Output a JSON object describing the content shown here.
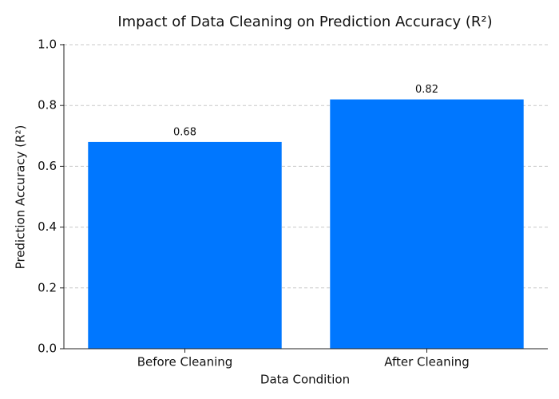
{
  "chart_data": {
    "type": "bar",
    "title": "Impact of Data Cleaning on Prediction Accuracy (R²)",
    "x_label": "Data Condition",
    "y_label": "Prediction Accuracy (R²)",
    "categories": [
      "Before Cleaning",
      "After Cleaning"
    ],
    "values": [
      0.68,
      0.82
    ],
    "color": "#0077ff",
    "ylim": [
      0,
      1
    ],
    "yticks": [
      {
        "value": 0,
        "label": "0.0"
      },
      0.2,
      0.4,
      0.6,
      0.8,
      {
        "value": 1,
        "label": "1.0"
      }
    ],
    "grid": true
  }
}
